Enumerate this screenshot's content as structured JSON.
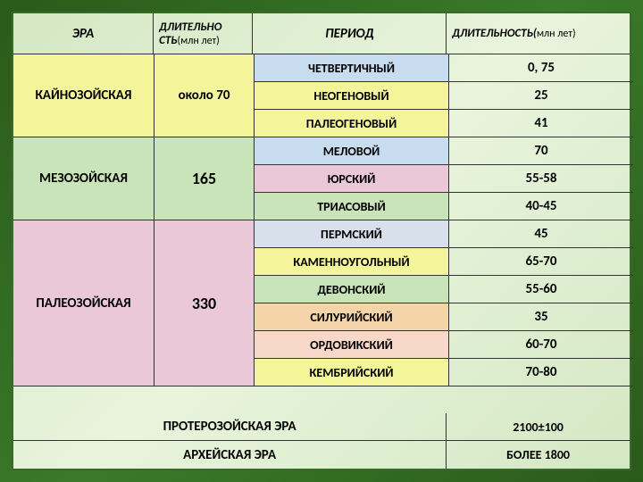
{
  "header": {
    "era": "ЭРА",
    "dur1_bold": "ДЛИТЕЛЬНО СТЬ",
    "dur1_rest": "(млн лет)",
    "period": "ПЕРИОД",
    "dur2_bold": "ДЛИТЕЛЬНОСТЬ(",
    "dur2_rest": "млн лет)"
  },
  "colors": {
    "yellow": "#f4f49a",
    "green": "#c8e4b8",
    "blue": "#c8dcf0",
    "pink": "#eac8d8",
    "orange": "#f4d4a8",
    "peach": "#f8d8c8",
    "grayblue": "#d8e0ec"
  },
  "eras": [
    {
      "name": "КАЙНОЗОЙСКАЯ",
      "dur": "около 70",
      "color": "yellow",
      "rows": 3
    },
    {
      "name": "МЕЗОЗОЙСКАЯ",
      "dur": "165",
      "color": "green",
      "rows": 3
    },
    {
      "name": "ПАЛЕОЗОЙСКАЯ",
      "dur": "330",
      "color": "pink",
      "rows": 6
    }
  ],
  "periods": [
    {
      "name": "ЧЕТВЕРТИЧНЫЙ",
      "dur": "0, 75",
      "color": "blue"
    },
    {
      "name": "НЕОГЕНОВЫЙ",
      "dur": "25",
      "color": "yellow"
    },
    {
      "name": "ПАЛЕОГЕНОВЫЙ",
      "dur": "41",
      "color": "yellow"
    },
    {
      "name": "МЕЛОВОЙ",
      "dur": "70",
      "color": "blue"
    },
    {
      "name": "ЮРСКИЙ",
      "dur": "55-58",
      "color": "pink"
    },
    {
      "name": "ТРИАСОВЫЙ",
      "dur": "40-45",
      "color": "green"
    },
    {
      "name": "ПЕРМСКИЙ",
      "dur": "45",
      "color": "grayblue"
    },
    {
      "name": "КАМЕННОУГОЛЬНЫЙ",
      "dur": "65-70",
      "color": "yellow"
    },
    {
      "name": "ДЕВОНСКИЙ",
      "dur": "55-60",
      "color": "green"
    },
    {
      "name": "СИЛУРИЙСКИЙ",
      "dur": "35",
      "color": "orange"
    },
    {
      "name": "ОРДОВИКСКИЙ",
      "dur": "60-70",
      "color": "peach"
    },
    {
      "name": "КЕМБРИЙСКИЙ",
      "dur": "70-80",
      "color": "yellow"
    }
  ],
  "footer": [
    {
      "name": "ПРОТЕРОЗОЙСКАЯ ЭРА",
      "dur": "2100±100"
    },
    {
      "name": "АРХЕЙСКАЯ ЭРА",
      "dur": "БОЛЕЕ 1800"
    }
  ]
}
